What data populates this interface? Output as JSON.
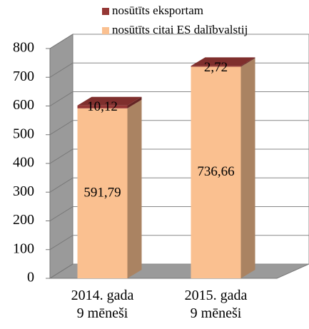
{
  "chart_data": {
    "type": "bar3d_stacked",
    "categories": [
      "2014. gada\n9 mēneši",
      "2015. gada\n9 mēneši"
    ],
    "series": [
      {
        "name": "nosūtīts citai ES dalībvalstij",
        "color": "#fac090",
        "values": [
          591.79,
          736.66
        ],
        "value_labels": [
          "591,79",
          "736,66"
        ]
      },
      {
        "name": "nosūtīts eksportam",
        "color": "#953735",
        "values": [
          10.12,
          2.72
        ],
        "value_labels": [
          "10,12",
          "2,72"
        ]
      }
    ],
    "ylim": [
      0,
      800
    ],
    "yticks": [
      0,
      100,
      200,
      300,
      400,
      500,
      600,
      700,
      800
    ],
    "grid": true,
    "legend": "top-right"
  }
}
